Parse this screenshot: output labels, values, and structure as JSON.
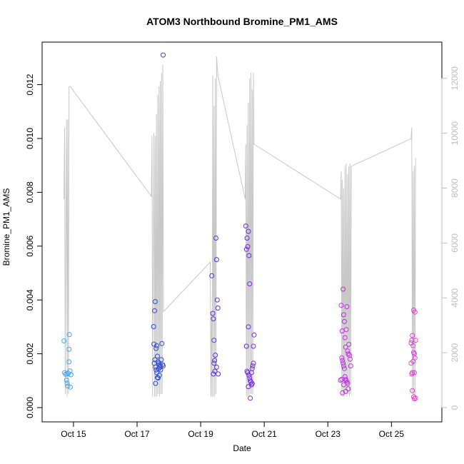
{
  "chart_data": {
    "type": "scatter",
    "title": "ATOM3 Northbound Bromine_PM1_AMS",
    "xlabel": "Date",
    "ylabel": "Bromine_PM1_AMS",
    "x_ticks": [
      "Oct 15",
      "Oct 17",
      "Oct 19",
      "Oct 21",
      "Oct 23",
      "Oct 25"
    ],
    "y_ticks": [
      "0.000",
      "0.002",
      "0.004",
      "0.006",
      "0.008",
      "0.010",
      "0.012"
    ],
    "y2_ticks": [
      "0",
      "2000",
      "4000",
      "6000",
      "8000",
      "10000",
      "12000"
    ],
    "xlim_days": [
      14.35,
      26.25
    ],
    "ylim": [
      0.0,
      0.01305
    ],
    "y2lim": [
      0,
      12800
    ],
    "secondary_axis": "right, gray (altitude trace)",
    "grid": false,
    "legend": "none",
    "colors": {
      "line": "#c8c8c8",
      "right_axis": "#bdbdbd",
      "point_gradient": [
        "#3fa9f5",
        "#2a4dd8",
        "#6a2bd8",
        "#b62ee0",
        "#e23ed6"
      ]
    },
    "points": [
      {
        "x": 14.7,
        "y": 0.00248
      },
      {
        "x": 14.72,
        "y": 0.0013
      },
      {
        "x": 14.75,
        "y": 0.00124
      },
      {
        "x": 14.78,
        "y": 0.00102
      },
      {
        "x": 14.8,
        "y": 0.00091
      },
      {
        "x": 14.82,
        "y": 0.0008
      },
      {
        "x": 14.84,
        "y": 0.00128
      },
      {
        "x": 14.86,
        "y": 0.00217
      },
      {
        "x": 14.87,
        "y": 0.00271
      },
      {
        "x": 14.89,
        "y": 0.00136
      },
      {
        "x": 14.9,
        "y": 0.00076
      },
      {
        "x": 14.92,
        "y": 0.00122
      },
      {
        "x": 14.86,
        "y": 0.0017
      },
      {
        "x": 14.8,
        "y": 0.00125
      },
      {
        "x": 17.52,
        "y": 0.00301
      },
      {
        "x": 17.57,
        "y": 0.00394
      },
      {
        "x": 17.55,
        "y": 0.0036
      },
      {
        "x": 17.53,
        "y": 0.00236
      },
      {
        "x": 17.56,
        "y": 0.00178
      },
      {
        "x": 17.54,
        "y": 0.00165
      },
      {
        "x": 17.58,
        "y": 0.0015
      },
      {
        "x": 17.6,
        "y": 0.0014
      },
      {
        "x": 17.62,
        "y": 0.0023
      },
      {
        "x": 17.64,
        "y": 0.00191
      },
      {
        "x": 17.6,
        "y": 0.0022
      },
      {
        "x": 17.66,
        "y": 0.0017
      },
      {
        "x": 17.68,
        "y": 0.00165
      },
      {
        "x": 17.7,
        "y": 0.0016
      },
      {
        "x": 17.72,
        "y": 0.0015
      },
      {
        "x": 17.74,
        "y": 0.00155
      },
      {
        "x": 17.76,
        "y": 0.00178
      },
      {
        "x": 17.78,
        "y": 0.00238
      },
      {
        "x": 17.8,
        "y": 0.0016
      },
      {
        "x": 17.82,
        "y": 0.00155
      },
      {
        "x": 17.7,
        "y": 0.0012
      },
      {
        "x": 17.66,
        "y": 0.0011
      },
      {
        "x": 17.62,
        "y": 0.0013
      },
      {
        "x": 17.58,
        "y": 0.0009
      },
      {
        "x": 17.74,
        "y": 0.0014
      },
      {
        "x": 17.68,
        "y": 0.00145
      },
      {
        "x": 17.64,
        "y": 0.00112
      },
      {
        "x": 17.82,
        "y": 0.0131
      },
      {
        "x": 19.35,
        "y": 0.0049
      },
      {
        "x": 19.38,
        "y": 0.0035
      },
      {
        "x": 19.4,
        "y": 0.0033
      },
      {
        "x": 19.42,
        "y": 0.0025
      },
      {
        "x": 19.44,
        "y": 0.00175
      },
      {
        "x": 19.46,
        "y": 0.00195
      },
      {
        "x": 19.48,
        "y": 0.0063
      },
      {
        "x": 19.5,
        "y": 0.0055
      },
      {
        "x": 19.52,
        "y": 0.004
      },
      {
        "x": 19.54,
        "y": 0.0037
      },
      {
        "x": 19.4,
        "y": 0.00125
      },
      {
        "x": 19.45,
        "y": 0.00135
      },
      {
        "x": 19.5,
        "y": 0.0015
      },
      {
        "x": 19.55,
        "y": 0.00125
      },
      {
        "x": 19.42,
        "y": 0.00165
      },
      {
        "x": 20.42,
        "y": 0.00675
      },
      {
        "x": 20.44,
        "y": 0.00588
      },
      {
        "x": 20.46,
        "y": 0.0063
      },
      {
        "x": 20.48,
        "y": 0.00598
      },
      {
        "x": 20.5,
        "y": 0.00655
      },
      {
        "x": 20.52,
        "y": 0.00565
      },
      {
        "x": 20.54,
        "y": 0.0046
      },
      {
        "x": 20.5,
        "y": 0.003
      },
      {
        "x": 20.44,
        "y": 0.00228
      },
      {
        "x": 20.46,
        "y": 0.00135
      },
      {
        "x": 20.48,
        "y": 0.0013
      },
      {
        "x": 20.52,
        "y": 0.0012
      },
      {
        "x": 20.54,
        "y": 0.0011
      },
      {
        "x": 20.56,
        "y": 0.001
      },
      {
        "x": 20.58,
        "y": 0.00095
      },
      {
        "x": 20.6,
        "y": 0.00085
      },
      {
        "x": 20.62,
        "y": 0.0009
      },
      {
        "x": 20.64,
        "y": 0.00155
      },
      {
        "x": 20.66,
        "y": 0.00165
      },
      {
        "x": 20.68,
        "y": 0.0027
      },
      {
        "x": 20.66,
        "y": 0.00228
      },
      {
        "x": 20.5,
        "y": 0.00078
      },
      {
        "x": 20.56,
        "y": 0.00035
      },
      {
        "x": 20.6,
        "y": 0.0013
      },
      {
        "x": 20.62,
        "y": 0.00145
      },
      {
        "x": 23.42,
        "y": 0.0038
      },
      {
        "x": 23.45,
        "y": 0.00285
      },
      {
        "x": 23.48,
        "y": 0.0044
      },
      {
        "x": 23.5,
        "y": 0.00345
      },
      {
        "x": 23.52,
        "y": 0.0032
      },
      {
        "x": 23.54,
        "y": 0.0026
      },
      {
        "x": 23.56,
        "y": 0.00225
      },
      {
        "x": 23.58,
        "y": 0.0029
      },
      {
        "x": 23.6,
        "y": 0.00375
      },
      {
        "x": 23.62,
        "y": 0.0021
      },
      {
        "x": 23.64,
        "y": 0.002
      },
      {
        "x": 23.66,
        "y": 0.00235
      },
      {
        "x": 23.68,
        "y": 0.00195
      },
      {
        "x": 23.7,
        "y": 0.0018
      },
      {
        "x": 23.72,
        "y": 0.00155
      },
      {
        "x": 23.44,
        "y": 0.00185
      },
      {
        "x": 23.46,
        "y": 0.00175
      },
      {
        "x": 23.48,
        "y": 0.00165
      },
      {
        "x": 23.5,
        "y": 0.00155
      },
      {
        "x": 23.52,
        "y": 0.00145
      },
      {
        "x": 23.54,
        "y": 0.00115
      },
      {
        "x": 23.56,
        "y": 0.00105
      },
      {
        "x": 23.58,
        "y": 0.001
      },
      {
        "x": 23.6,
        "y": 0.00095
      },
      {
        "x": 23.62,
        "y": 0.0009
      },
      {
        "x": 23.64,
        "y": 0.0007
      },
      {
        "x": 23.44,
        "y": 0.00105
      },
      {
        "x": 23.46,
        "y": 0.00055
      },
      {
        "x": 23.5,
        "y": 0.00085
      },
      {
        "x": 23.4,
        "y": 0.00102
      },
      {
        "x": 23.56,
        "y": 0.0006
      },
      {
        "x": 25.62,
        "y": 0.0024
      },
      {
        "x": 25.64,
        "y": 0.0025
      },
      {
        "x": 25.66,
        "y": 0.00268
      },
      {
        "x": 25.68,
        "y": 0.0023
      },
      {
        "x": 25.7,
        "y": 0.00205
      },
      {
        "x": 25.72,
        "y": 0.002
      },
      {
        "x": 25.74,
        "y": 0.00185
      },
      {
        "x": 25.76,
        "y": 0.0025
      },
      {
        "x": 25.7,
        "y": 0.00362
      },
      {
        "x": 25.74,
        "y": 0.00355
      },
      {
        "x": 25.62,
        "y": 0.00165
      },
      {
        "x": 25.64,
        "y": 0.00125
      },
      {
        "x": 25.66,
        "y": 0.0013
      },
      {
        "x": 25.68,
        "y": 0.00172
      },
      {
        "x": 25.72,
        "y": 0.0013
      },
      {
        "x": 25.66,
        "y": 0.00063
      },
      {
        "x": 25.7,
        "y": 0.0004
      },
      {
        "x": 25.72,
        "y": 0.00033
      },
      {
        "x": 25.76,
        "y": 0.00035
      }
    ],
    "altitude_series": {
      "name": "",
      "x": [
        14.7,
        14.72,
        14.74,
        14.76,
        14.78,
        14.8,
        14.82,
        14.84,
        14.86,
        14.88,
        14.9,
        17.45,
        17.47,
        17.49,
        17.51,
        17.53,
        17.55,
        17.57,
        17.59,
        17.61,
        17.63,
        17.65,
        17.67,
        17.69,
        17.71,
        17.73,
        17.75,
        17.77,
        17.79,
        17.81,
        17.83,
        19.3,
        19.32,
        19.34,
        19.36,
        19.38,
        19.4,
        19.42,
        19.44,
        19.46,
        19.48,
        19.5,
        19.52,
        19.54,
        20.4,
        20.42,
        20.44,
        20.46,
        20.48,
        20.5,
        20.52,
        20.54,
        20.56,
        20.58,
        20.6,
        20.62,
        20.64,
        20.66,
        20.68,
        23.4,
        23.42,
        23.44,
        23.46,
        23.48,
        23.5,
        23.52,
        23.54,
        23.56,
        23.58,
        23.6,
        23.62,
        23.64,
        23.66,
        23.68,
        23.7,
        23.72,
        23.74,
        25.62,
        25.64,
        25.66,
        25.68,
        25.7,
        25.72,
        25.74,
        25.76
      ],
      "y": [
        7600,
        10200,
        500,
        6800,
        10500,
        400,
        10500,
        500,
        11700,
        11700,
        11700,
        7700,
        9900,
        400,
        5400,
        10000,
        400,
        9900,
        400,
        10700,
        400,
        11400,
        500,
        11700,
        400,
        11900,
        500,
        12200,
        500,
        12500,
        3500,
        5300,
        400,
        3500,
        400,
        12100,
        400,
        11000,
        400,
        12000,
        500,
        12800,
        12400,
        12100,
        7600,
        9600,
        400,
        10300,
        400,
        11100,
        400,
        12000,
        500,
        12200,
        500,
        11600,
        500,
        12200,
        9600,
        7600,
        8600,
        400,
        8300,
        400,
        8000,
        400,
        8800,
        500,
        8900,
        400,
        8500,
        500,
        8800,
        400,
        8900,
        500,
        8800,
        9800,
        10200,
        500,
        8600,
        400,
        8800,
        400,
        9100
      ]
    }
  }
}
